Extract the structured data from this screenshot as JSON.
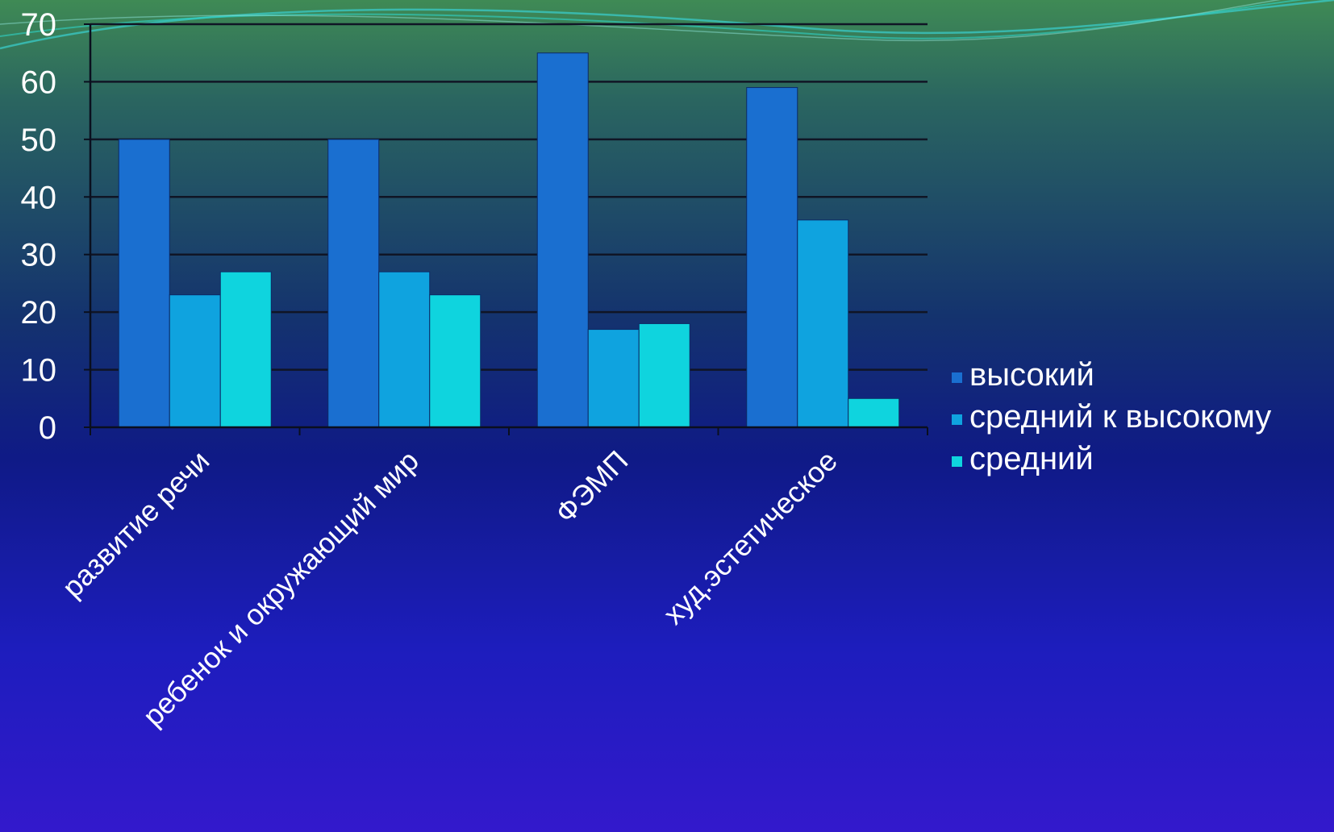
{
  "colors": {
    "series": [
      "#1a6fd0",
      "#0fa3df",
      "#0fd4de"
    ],
    "grid": "#101525",
    "axis": "#0a0f1e"
  },
  "chart_data": {
    "type": "bar",
    "categories": [
      "развитие речи",
      "ребенок и окружающий мир",
      "ФЭМП",
      "худ.эстетическое"
    ],
    "series": [
      {
        "name": "высокий",
        "values": [
          50,
          50,
          65,
          59
        ]
      },
      {
        "name": "средний к высокому",
        "values": [
          23,
          27,
          17,
          36
        ]
      },
      {
        "name": "средний",
        "values": [
          27,
          23,
          18,
          5
        ]
      }
    ],
    "ylim": [
      0,
      70
    ],
    "yticks": [
      0,
      10,
      20,
      30,
      40,
      50,
      60,
      70
    ],
    "grid": true,
    "legend": "right"
  }
}
